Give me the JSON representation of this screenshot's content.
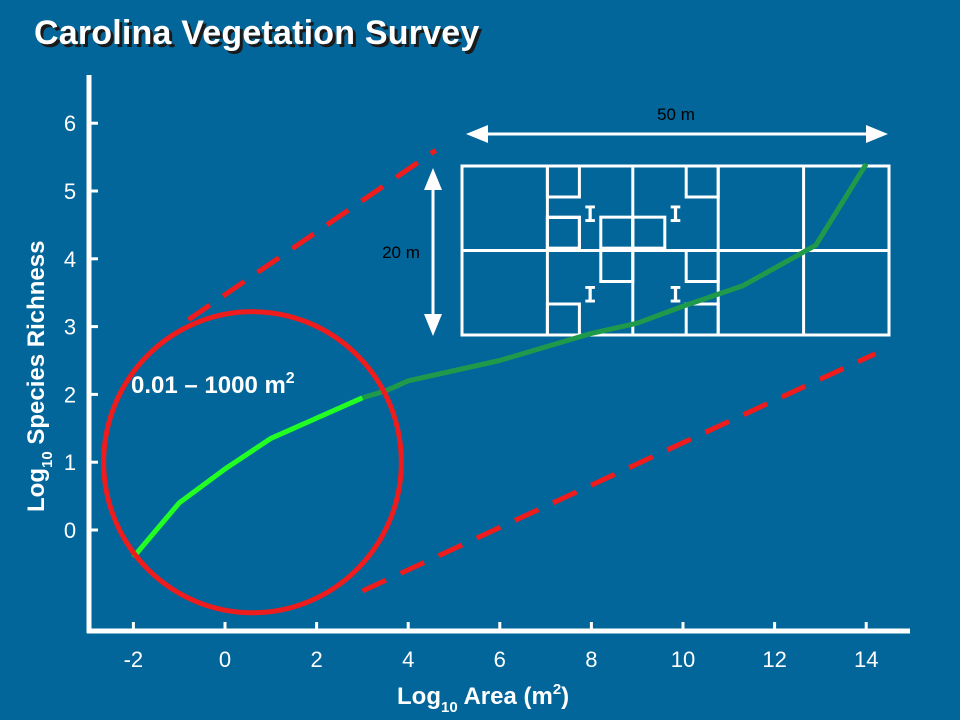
{
  "title": "Carolina Vegetation Survey",
  "colors": {
    "background": "#02669a",
    "axis": "#ffffff",
    "curve_highlight": "#22ff22",
    "curve_main": "#1e9a4a",
    "annotation_red": "#ee1c1c",
    "plot_diagram_fill": "#02669a",
    "plot_diagram_stroke": "#ffffff"
  },
  "chart_data": {
    "type": "line",
    "title": "Carolina Vegetation Survey",
    "xlabel": {
      "main": "Log",
      "sub": "10",
      "rest": " Area (m",
      "sup": "2",
      "end": ")"
    },
    "ylabel": {
      "main": "Log",
      "sub": "10",
      "rest": " Species Richness"
    },
    "x_ticks": [
      "-2",
      "0",
      "2",
      "4",
      "6",
      "8",
      "10",
      "12",
      "14"
    ],
    "y_ticks": [
      "0",
      "1",
      "2",
      "3",
      "4",
      "5",
      "6"
    ],
    "xlim": [
      -3,
      15
    ],
    "ylim": [
      -1.5,
      6.8
    ],
    "grid": false,
    "series": [
      {
        "x": [
          -2,
          -1,
          0,
          1,
          2,
          3,
          3.5,
          4,
          6,
          8,
          9,
          10,
          11.3,
          12.9,
          14
        ],
        "y": [
          -0.4,
          0.4,
          0.9,
          1.35,
          1.65,
          1.95,
          2.05,
          2.2,
          2.5,
          2.9,
          3.05,
          3.3,
          3.6,
          4.2,
          5.4
        ]
      }
    ],
    "highlight_range_x": [
      -2,
      3.4
    ],
    "annotations": {
      "circle_label": {
        "main": "0.01 – 1000 m",
        "sup": "2"
      },
      "bound_lines": [
        {
          "x": [
            -0.8,
            4.6
          ],
          "y": [
            3.1,
            5.6
          ]
        },
        {
          "x": [
            3,
            14.2
          ],
          "y": [
            -0.9,
            2.6
          ]
        }
      ],
      "circle": {
        "cx": 0.6,
        "cy": 1,
        "rx_units": 3.25,
        "ry_units": 2.22
      }
    },
    "plot_diagram": {
      "width_label": "50 m",
      "height_label": "20 m",
      "module_marker": "I"
    }
  }
}
